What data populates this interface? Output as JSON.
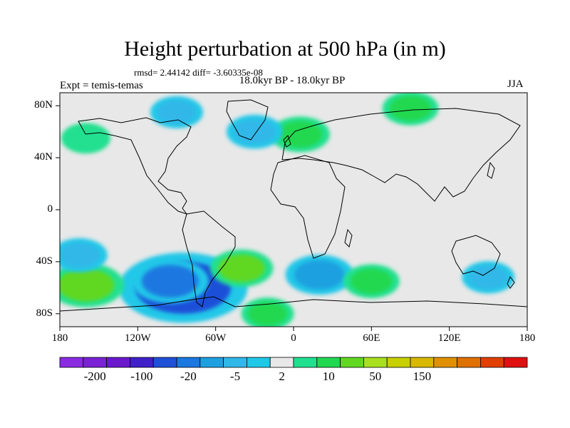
{
  "title": "Height perturbation at 500 hPa (in m)",
  "stats": "rmsd= 2.44142 diff= -3.60335e-08",
  "period": "18.0kyr BP - 18.0kyr BP",
  "experiment": "Expt = temis-temas",
  "season": "JJA",
  "map": {
    "projection": "cylindrical equidistant",
    "lon_range": [
      -180,
      180
    ],
    "lat_range": [
      -90,
      90
    ],
    "y_ticks": [
      {
        "value": 80,
        "label": "80N"
      },
      {
        "value": 40,
        "label": "40N"
      },
      {
        "value": 0,
        "label": "0"
      },
      {
        "value": -40,
        "label": "40S"
      },
      {
        "value": -80,
        "label": "80S"
      }
    ],
    "x_ticks": [
      {
        "value": -180,
        "label": "180"
      },
      {
        "value": -120,
        "label": "120W"
      },
      {
        "value": -60,
        "label": "60W"
      },
      {
        "value": 0,
        "label": "0"
      },
      {
        "value": 60,
        "label": "60E"
      },
      {
        "value": 120,
        "label": "120E"
      },
      {
        "value": 180,
        "label": "180"
      }
    ],
    "background_color": "#e8e8e8",
    "frame_color": "#000000"
  },
  "colorbar": {
    "bins": [
      "#8a2be2",
      "#7a22d6",
      "#6a18cc",
      "#4020c8",
      "#1e50d8",
      "#1a78e0",
      "#1ea0e0",
      "#30b8e8",
      "#20c8e8",
      "#e8e8e8",
      "#20e090",
      "#20d850",
      "#60d820",
      "#a8e020",
      "#c8d000",
      "#d8b800",
      "#e09000",
      "#e07000",
      "#e04000",
      "#e01010"
    ],
    "labels": [
      {
        "bin_edge": 1,
        "text": "-200"
      },
      {
        "bin_edge": 3,
        "text": "-100"
      },
      {
        "bin_edge": 5,
        "text": "-20"
      },
      {
        "bin_edge": 7,
        "text": "-5"
      },
      {
        "bin_edge": 9,
        "text": "2"
      },
      {
        "bin_edge": 11,
        "text": "10"
      },
      {
        "bin_edge": 13,
        "text": "50"
      },
      {
        "bin_edge": 15,
        "text": "150"
      }
    ]
  },
  "chart_data": {
    "type": "heatmap",
    "title": "Height perturbation at 500 hPa (in m)",
    "units": "m",
    "level": "500 hPa",
    "season": "JJA",
    "anomaly_regions": [
      {
        "name": "south-pacific-east-low",
        "lon": -85,
        "lat": -60,
        "value": -50
      },
      {
        "name": "south-pacific-east-low-outer",
        "lon": -95,
        "lat": -55,
        "value": -20
      },
      {
        "name": "south-pacific-west-high",
        "lon": -160,
        "lat": -58,
        "value": 20
      },
      {
        "name": "south-atlantic-east-low",
        "lon": 20,
        "lat": -50,
        "value": -15
      },
      {
        "name": "south-atlantic-west-high",
        "lon": -40,
        "lat": -45,
        "value": 12
      },
      {
        "name": "indian-ocean-high",
        "lon": 60,
        "lat": -55,
        "value": 8
      },
      {
        "name": "antarctic-high",
        "lon": -20,
        "lat": -80,
        "value": 6
      },
      {
        "name": "south-pacific-low",
        "lon": -165,
        "lat": -35,
        "value": -8
      },
      {
        "name": "australia-low",
        "lon": 150,
        "lat": -52,
        "value": -6
      },
      {
        "name": "europe-high",
        "lon": 5,
        "lat": 58,
        "value": 10
      },
      {
        "name": "north-atlantic-low",
        "lon": -30,
        "lat": 60,
        "value": -8
      },
      {
        "name": "siberia-high",
        "lon": 90,
        "lat": 78,
        "value": 8
      },
      {
        "name": "arctic-low",
        "lon": -90,
        "lat": 75,
        "value": -6
      },
      {
        "name": "north-pacific-high",
        "lon": -160,
        "lat": 55,
        "value": 4
      }
    ]
  }
}
